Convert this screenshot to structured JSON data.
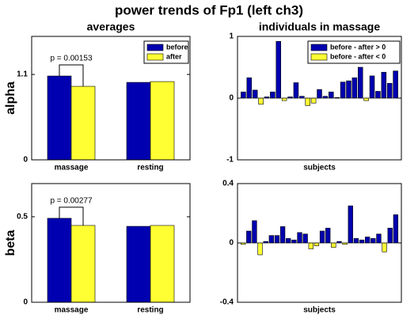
{
  "title": "power trends of Fp1 (left ch3)",
  "chart_data": [
    {
      "type": "bar",
      "title": "averages",
      "ylabel": "alpha",
      "categories": [
        "massage",
        "resting"
      ],
      "series": [
        {
          "name": "before",
          "color": "#0000b0",
          "values": [
            1.08,
            0.998
          ]
        },
        {
          "name": "after",
          "color": "#ffff33",
          "values": [
            0.947,
            1.008
          ]
        }
      ],
      "ylim": [
        0,
        1.59
      ],
      "yticks": [
        0,
        1.1
      ],
      "annotation": "p = 0.00153",
      "legend": "upper right"
    },
    {
      "type": "bar",
      "title": "individuals in massage",
      "xlabel": "subjects",
      "series": [
        {
          "name": "before - after > 0",
          "color": "#0000b0",
          "values": [
            0.1,
            0.33,
            0.13,
            null,
            0.02,
            0.1,
            0.92,
            null,
            0.02,
            0.25,
            0.03,
            null,
            null,
            0.14,
            0.03,
            0.1,
            0.01,
            0.26,
            0.28,
            0.33,
            0.5,
            null,
            0.36,
            0.11,
            0.42,
            0.24,
            0.44
          ]
        },
        {
          "name": "before - after < 0",
          "color": "#ffff33",
          "values": [
            null,
            null,
            null,
            -0.1,
            null,
            null,
            null,
            -0.04,
            null,
            null,
            null,
            -0.12,
            -0.08,
            null,
            null,
            null,
            null,
            null,
            null,
            null,
            null,
            -0.04,
            null,
            null,
            null,
            null,
            null
          ]
        }
      ],
      "ylim": [
        -1,
        1
      ],
      "yticks": [
        -1,
        0,
        1
      ],
      "legend": "upper right"
    },
    {
      "type": "bar",
      "ylabel": "beta",
      "categories": [
        "massage",
        "resting"
      ],
      "series": [
        {
          "name": "before",
          "color": "#0000b0",
          "values": [
            0.491,
            0.444
          ]
        },
        {
          "name": "after",
          "color": "#ffff33",
          "values": [
            0.449,
            0.449
          ]
        }
      ],
      "ylim": [
        0,
        0.694
      ],
      "yticks": [
        0,
        0.5
      ],
      "annotation": "p = 0.00277"
    },
    {
      "type": "bar",
      "xlabel": "subjects",
      "series": [
        {
          "name": "before - after > 0",
          "color": "#0000b0",
          "values": [
            null,
            0.08,
            0.15,
            null,
            0.01,
            0.05,
            0.05,
            0.11,
            0.03,
            0.02,
            0.07,
            0.06,
            null,
            null,
            0.08,
            0.1,
            null,
            0.01,
            null,
            0.25,
            0.03,
            0.02,
            0.04,
            0.03,
            0.06,
            null,
            0.1,
            0.19
          ]
        },
        {
          "name": "before - after < 0",
          "color": "#ffff33",
          "values": [
            -0.01,
            null,
            null,
            -0.08,
            null,
            null,
            null,
            null,
            null,
            null,
            null,
            null,
            -0.04,
            -0.02,
            null,
            null,
            -0.03,
            null,
            -0.01,
            null,
            null,
            null,
            null,
            null,
            null,
            -0.06,
            null,
            null
          ]
        }
      ],
      "ylim": [
        -0.4,
        0.4
      ],
      "yticks": [
        -0.4,
        0,
        0.4
      ]
    }
  ]
}
